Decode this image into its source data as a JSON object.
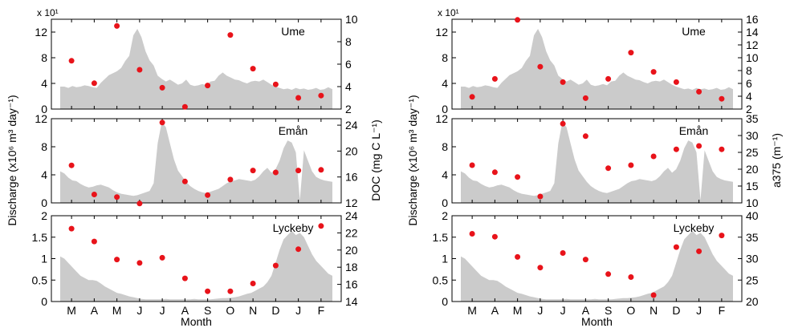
{
  "figure": {
    "xlabel": "Month",
    "months": [
      "M",
      "A",
      "M",
      "J",
      "J",
      "A",
      "S",
      "O",
      "N",
      "D",
      "J",
      "F"
    ]
  },
  "chart_data": [
    {
      "type": "area",
      "panel": "left-top",
      "label": "Ume",
      "ylabel": "Discharge (x10⁶ m³ day⁻¹)",
      "yscale_label": "x 10¹",
      "ylim": [
        0,
        14
      ],
      "yticks": [
        0,
        4,
        8,
        12
      ],
      "discharge": [
        3.5,
        3.5,
        3.3,
        3.6,
        3.4,
        3.5,
        3.7,
        3.6,
        3.4,
        3.3,
        4.1,
        4.7,
        5.3,
        5.6,
        5.9,
        6.4,
        7.5,
        8.3,
        11.5,
        12.5,
        11.2,
        9.0,
        7.6,
        6.8,
        5.2,
        4.7,
        4.3,
        4.6,
        4.2,
        3.8,
        4.0,
        4.6,
        3.8,
        3.6,
        3.7,
        3.9,
        3.7,
        4.3,
        4.4,
        5.2,
        5.7,
        5.2,
        4.9,
        4.6,
        4.5,
        4.2,
        4.0,
        4.3,
        4.4,
        4.3,
        4.6,
        4.2,
        3.8,
        3.5,
        3.3,
        3.1,
        3.2,
        3.0,
        3.3,
        3.1,
        3.2,
        3.0,
        3.1,
        3.3,
        3.0,
        3.1,
        3.4,
        3.1
      ],
      "y2label": "DOC (mg C L⁻¹)",
      "y2lim": [
        2,
        10
      ],
      "y2ticks": [
        2,
        4,
        6,
        8,
        10
      ],
      "series": [
        {
          "values": [
            6.3,
            4.3,
            9.4,
            5.5,
            3.9,
            2.2,
            4.1,
            8.6,
            5.6,
            4.2,
            3.0,
            3.2
          ]
        }
      ]
    },
    {
      "type": "area",
      "panel": "left-middle",
      "label": "Emån",
      "ylim": [
        0,
        12
      ],
      "yticks": [
        0,
        4,
        8,
        12
      ],
      "discharge": [
        4.5,
        4.2,
        3.6,
        3.2,
        3.1,
        2.7,
        2.4,
        2.2,
        2.3,
        2.5,
        2.6,
        2.4,
        2.2,
        1.8,
        1.5,
        1.3,
        1.2,
        1.1,
        1.0,
        1.1,
        1.3,
        1.5,
        1.7,
        2.8,
        8.5,
        11.5,
        10.8,
        8.5,
        6.2,
        4.6,
        3.8,
        3.0,
        2.4,
        2.0,
        1.7,
        1.5,
        1.4,
        1.6,
        1.8,
        2.0,
        2.4,
        2.8,
        3.1,
        3.2,
        3.4,
        3.3,
        3.2,
        3.1,
        3.3,
        3.8,
        4.5,
        5.0,
        4.3,
        4.8,
        6.0,
        7.8,
        8.9,
        8.6,
        7.2,
        0.4,
        7.5,
        6.0,
        4.5,
        3.7,
        3.4,
        3.2,
        3.1,
        3.0
      ],
      "y2lim": [
        12,
        25
      ],
      "y2ticks": [
        12,
        16,
        20,
        24
      ],
      "series": [
        {
          "values": [
            17.8,
            13.3,
            12.9,
            11.9,
            24.4,
            15.3,
            13.2,
            15.6,
            17.0,
            16.7,
            17.0,
            17.1
          ]
        }
      ]
    },
    {
      "type": "area",
      "panel": "left-bottom",
      "label": "Lyckeby",
      "ylim": [
        0,
        2
      ],
      "yticks": [
        0,
        0.5,
        1,
        1.5,
        2
      ],
      "yticklabels": [
        "0",
        "0.5",
        "1",
        "1.5",
        "2"
      ],
      "discharge": [
        1.05,
        1.0,
        0.9,
        0.8,
        0.7,
        0.6,
        0.55,
        0.5,
        0.5,
        0.48,
        0.42,
        0.35,
        0.3,
        0.25,
        0.2,
        0.18,
        0.15,
        0.12,
        0.1,
        0.08,
        0.06,
        0.05,
        0.05,
        0.05,
        0.05,
        0.05,
        0.06,
        0.05,
        0.05,
        0.05,
        0.05,
        0.05,
        0.05,
        0.06,
        0.05,
        0.05,
        0.05,
        0.05,
        0.06,
        0.07,
        0.08,
        0.08,
        0.09,
        0.1,
        0.12,
        0.15,
        0.18,
        0.2,
        0.25,
        0.3,
        0.35,
        0.45,
        0.6,
        0.9,
        1.2,
        1.45,
        1.55,
        1.65,
        1.55,
        1.6,
        1.5,
        1.3,
        1.1,
        0.95,
        0.85,
        0.75,
        0.65,
        0.6
      ],
      "y2lim": [
        14,
        24
      ],
      "y2ticks": [
        14,
        16,
        18,
        20,
        22,
        24
      ],
      "series": [
        {
          "values": [
            22.5,
            21.0,
            18.9,
            18.5,
            19.1,
            16.7,
            15.2,
            15.2,
            16.1,
            18.2,
            20.1,
            22.8
          ]
        }
      ]
    },
    {
      "type": "area",
      "panel": "right-top",
      "label": "Ume",
      "ylabel": "Discharge (x10⁶ m³ day⁻¹)",
      "yscale_label": "x 10¹",
      "ylim": [
        0,
        14
      ],
      "yticks": [
        0,
        4,
        8,
        12
      ],
      "discharge": [
        3.5,
        3.5,
        3.3,
        3.6,
        3.4,
        3.5,
        3.7,
        3.6,
        3.4,
        3.3,
        4.1,
        4.7,
        5.3,
        5.6,
        5.9,
        6.4,
        7.5,
        8.3,
        11.5,
        12.5,
        11.2,
        9.0,
        7.6,
        6.8,
        5.2,
        4.7,
        4.3,
        4.6,
        4.2,
        3.8,
        4.0,
        4.6,
        3.8,
        3.6,
        3.7,
        3.9,
        3.7,
        4.3,
        4.4,
        5.2,
        5.7,
        5.2,
        4.9,
        4.6,
        4.5,
        4.2,
        4.0,
        4.3,
        4.4,
        4.3,
        4.6,
        4.2,
        3.8,
        3.5,
        3.3,
        3.1,
        3.2,
        3.0,
        3.3,
        3.1,
        3.2,
        3.0,
        3.1,
        3.3,
        3.0,
        3.1,
        3.4,
        3.1
      ],
      "y2label": "a375 (m⁻¹)",
      "y2lim": [
        2,
        16
      ],
      "y2ticks": [
        2,
        4,
        6,
        8,
        10,
        12,
        14,
        16
      ],
      "series": [
        {
          "values": [
            3.9,
            6.7,
            15.9,
            8.6,
            6.2,
            3.7,
            6.7,
            10.8,
            7.8,
            6.2,
            4.7,
            3.6
          ]
        }
      ]
    },
    {
      "type": "area",
      "panel": "right-middle",
      "label": "Emån",
      "ylim": [
        0,
        12
      ],
      "yticks": [
        0,
        4,
        8,
        12
      ],
      "discharge": [
        4.5,
        4.2,
        3.6,
        3.2,
        3.1,
        2.7,
        2.4,
        2.2,
        2.3,
        2.5,
        2.6,
        2.4,
        2.2,
        1.8,
        1.5,
        1.3,
        1.2,
        1.1,
        1.0,
        1.1,
        1.3,
        1.5,
        1.7,
        2.8,
        8.5,
        11.5,
        10.8,
        8.5,
        6.2,
        4.6,
        3.8,
        3.0,
        2.4,
        2.0,
        1.7,
        1.5,
        1.4,
        1.6,
        1.8,
        2.0,
        2.4,
        2.8,
        3.1,
        3.2,
        3.4,
        3.3,
        3.2,
        3.1,
        3.3,
        3.8,
        4.5,
        5.0,
        4.3,
        4.8,
        6.0,
        7.8,
        8.9,
        8.6,
        7.2,
        0.4,
        7.5,
        6.0,
        4.5,
        3.7,
        3.4,
        3.2,
        3.1,
        3.0
      ],
      "y2lim": [
        10,
        35
      ],
      "y2ticks": [
        10,
        15,
        20,
        25,
        30,
        35
      ],
      "series": [
        {
          "values": [
            21.2,
            19.1,
            17.7,
            11.9,
            33.5,
            29.8,
            20.3,
            21.2,
            23.8,
            25.9,
            26.9,
            25.9
          ]
        }
      ]
    },
    {
      "type": "area",
      "panel": "right-bottom",
      "label": "Lyckeby",
      "ylim": [
        0,
        2
      ],
      "yticks": [
        0,
        0.5,
        1,
        1.5,
        2
      ],
      "yticklabels": [
        "0",
        "0.5",
        "1",
        "1.5",
        "2"
      ],
      "discharge": [
        1.05,
        1.0,
        0.9,
        0.8,
        0.7,
        0.6,
        0.55,
        0.5,
        0.5,
        0.48,
        0.42,
        0.35,
        0.3,
        0.25,
        0.2,
        0.18,
        0.15,
        0.12,
        0.1,
        0.08,
        0.06,
        0.05,
        0.05,
        0.05,
        0.05,
        0.05,
        0.06,
        0.05,
        0.05,
        0.05,
        0.05,
        0.05,
        0.05,
        0.06,
        0.05,
        0.05,
        0.05,
        0.05,
        0.06,
        0.07,
        0.08,
        0.08,
        0.09,
        0.1,
        0.12,
        0.15,
        0.18,
        0.2,
        0.25,
        0.3,
        0.35,
        0.45,
        0.6,
        0.9,
        1.2,
        1.45,
        1.55,
        1.65,
        1.55,
        1.6,
        1.5,
        1.3,
        1.1,
        0.95,
        0.85,
        0.75,
        0.65,
        0.6
      ],
      "y2lim": [
        20,
        40
      ],
      "y2ticks": [
        20,
        25,
        30,
        35,
        40
      ],
      "series": [
        {
          "values": [
            35.8,
            35.1,
            30.4,
            27.9,
            31.3,
            29.8,
            26.4,
            25.7,
            21.5,
            32.7,
            31.7,
            35.4
          ]
        }
      ]
    }
  ],
  "colors": {
    "area": "#cbcbcb",
    "points": "#e8131a",
    "axes": "#000000"
  }
}
